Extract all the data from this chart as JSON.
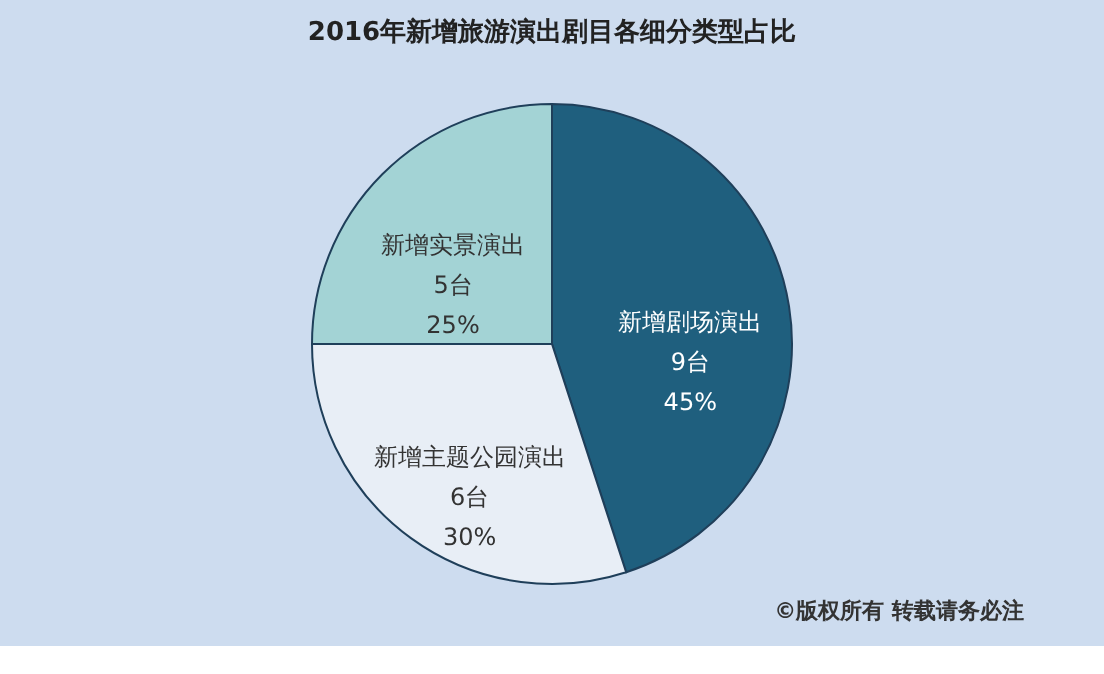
{
  "chart_data": {
    "type": "pie",
    "title": "2016年新增旅游演出剧目各细分类型占比",
    "categories": [
      "新增剧场演出",
      "新增主题公园演出",
      "新增实景演出"
    ],
    "values": [
      9,
      6,
      5
    ],
    "value_labels": [
      "9台\n45%",
      "6台\n30%",
      "5台\n25%"
    ],
    "colors": [
      "#1f5f7e",
      "#e8eef6",
      "#a3d3d5"
    ],
    "legend": false,
    "annotations": [
      "©版权所有   转载请务必注"
    ]
  }
}
